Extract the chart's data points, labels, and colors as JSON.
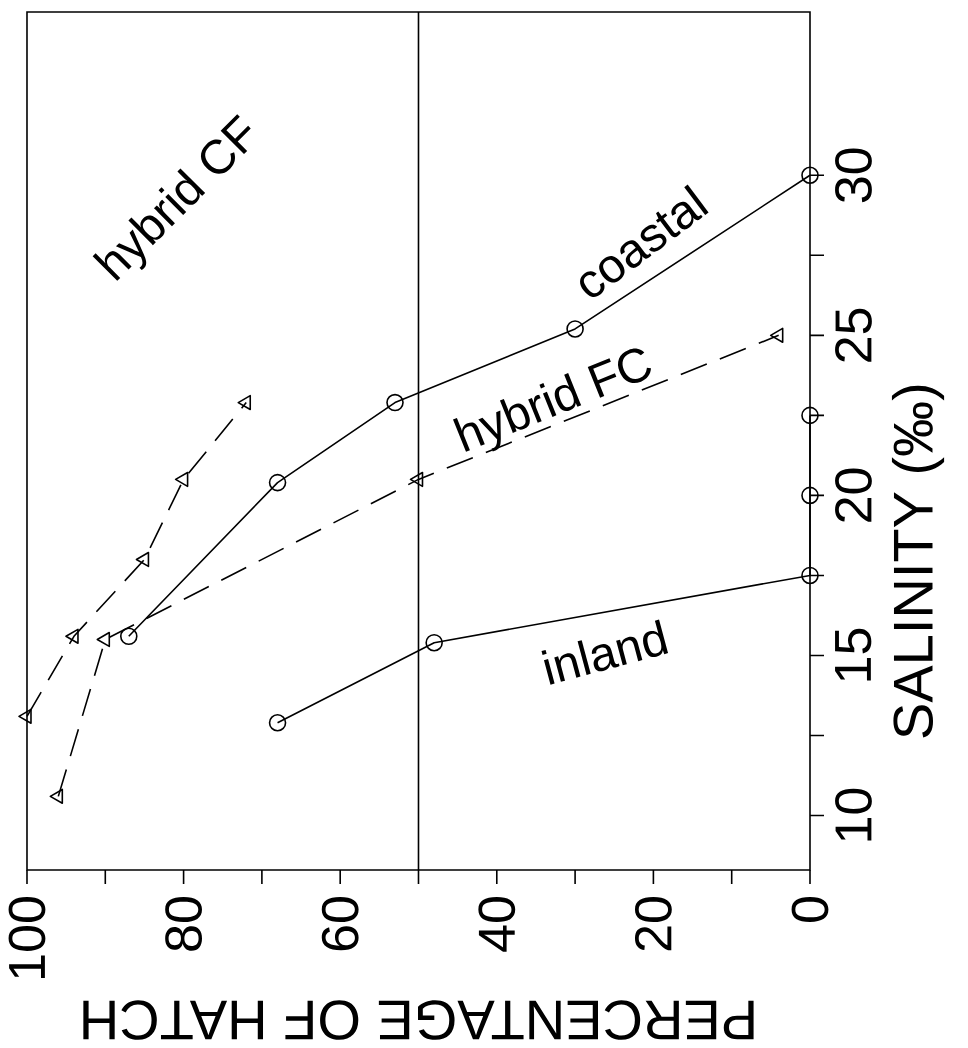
{
  "chart_data": {
    "type": "line",
    "xlabel": "PERCENTAGE OF HATCH",
    "ylabel": "SALINITY (‰)",
    "xlim": [
      100,
      0
    ],
    "ylim": [
      8.3,
      35.1
    ],
    "xticks": [
      100,
      {
        "value": 90,
        "label": null
      },
      80,
      {
        "value": 70,
        "label": null
      },
      60,
      {
        "value": 50,
        "label": null
      },
      40,
      {
        "value": 30,
        "label": null
      },
      20,
      {
        "value": 10,
        "label": null
      },
      0
    ],
    "yticks": [
      10,
      {
        "value": 12.5,
        "label": null
      },
      15,
      {
        "value": 17.5,
        "label": null
      },
      20,
      {
        "value": 22.5,
        "label": null
      },
      25,
      {
        "value": 27.5,
        "label": null
      },
      30
    ],
    "grid": false,
    "ref_lines": [
      {
        "axis": "x",
        "value": 50,
        "color": "#000000"
      }
    ],
    "series": [
      {
        "name": "inland",
        "color": "#000000",
        "marker": "circle",
        "line_style": "solid",
        "x": [
          68,
          48,
          0,
          0,
          0
        ],
        "values": [
          12.9,
          15.4,
          17.5,
          20,
          22.5
        ]
      },
      {
        "name": "coastal",
        "color": "#000000",
        "marker": "circle",
        "line_style": "solid",
        "x": [
          87,
          68,
          53,
          30,
          0
        ],
        "values": [
          15.6,
          20.4,
          22.9,
          25.2,
          30
        ]
      },
      {
        "name": "hybrid FC",
        "color": "#000000",
        "marker": "triangle",
        "line_style": "dashed",
        "x": [
          96,
          90,
          50,
          4
        ],
        "values": [
          10.6,
          15.5,
          20.5,
          25
        ]
      },
      {
        "name": "hybrid CF",
        "color": "#000000",
        "marker": "triangle",
        "line_style": "dashed",
        "x": [
          100,
          94,
          85,
          80,
          72
        ],
        "values": [
          13.1,
          15.6,
          18,
          20.5,
          22.9
        ]
      }
    ]
  }
}
